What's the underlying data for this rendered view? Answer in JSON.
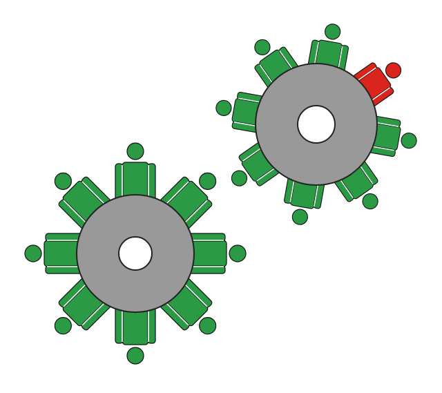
{
  "colors": {
    "person": "#2b9a45",
    "person_highlight": "#d9251c",
    "person_outline": "#111111",
    "person_seam": "#ffffff",
    "gear_fill": "#999999",
    "gear_outline": "#222222",
    "hub_fill": "#ffffff",
    "background": "#ffffff"
  },
  "gears": [
    {
      "name": "gear-left",
      "people": 8,
      "highlighted_index": null
    },
    {
      "name": "gear-right",
      "people": 8,
      "highlighted_index": 1
    }
  ]
}
